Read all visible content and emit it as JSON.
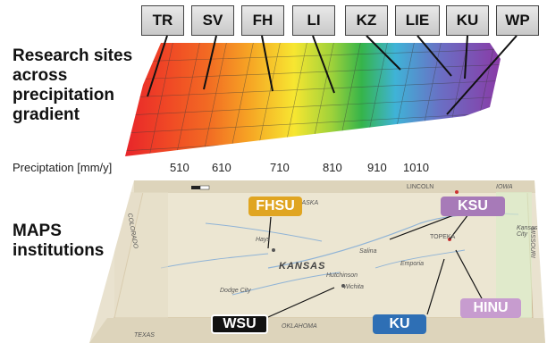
{
  "headings": {
    "research": "Research sites across precipitation gradient",
    "maps": "MAPS institutions"
  },
  "research_sites": [
    "TR",
    "SV",
    "FH",
    "LI",
    "KZ",
    "LIE",
    "KU",
    "WP"
  ],
  "precipitation": {
    "label": "Preciptation [mm/y]",
    "ticks": [
      "510",
      "610",
      "710",
      "810",
      "910",
      "1010"
    ]
  },
  "gradient_colors": [
    "#e8252a",
    "#f26a23",
    "#f6a424",
    "#f7e631",
    "#9fd23a",
    "#35b44a",
    "#3fb3d7",
    "#6a6fc4",
    "#8a3aa6"
  ],
  "institutions": {
    "fhsu": {
      "label": "FHSU",
      "color": "#e0a521"
    },
    "ksu": {
      "label": "KSU",
      "color": "#a77ab8"
    },
    "wsu": {
      "label": "WSU",
      "color": "#111111"
    },
    "ku": {
      "label": "KU",
      "color": "#2e6fb5"
    },
    "hinu": {
      "label": "HINU",
      "color": "#c79ccf"
    }
  },
  "map_labels": {
    "kansas": "KANSAS",
    "nebraska": "NEBRASKA",
    "oklahoma": "OKLAHOMA",
    "texas": "TEXAS",
    "colorado": "COLORADO",
    "missouri": "MISSOURI",
    "iowa": "IOWA",
    "lincoln": "LINCOLN",
    "topeka": "TOPEKA",
    "kansas_city": "Kansas City",
    "hays": "Hays",
    "dodge_city": "Dodge City",
    "wichita": "Wichita",
    "salina": "Salina",
    "hutchinson": "Hutchinson",
    "emporia": "Emporia"
  }
}
